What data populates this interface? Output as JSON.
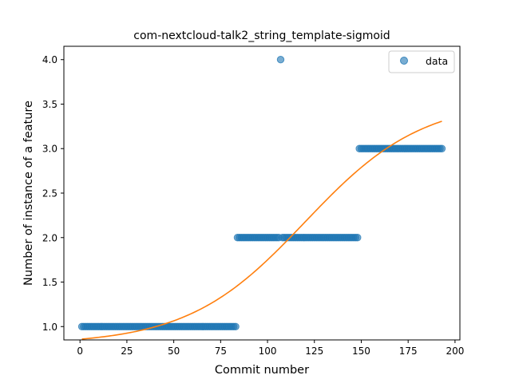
{
  "chart_data": {
    "type": "scatter",
    "title": "com-nextcloud-talk2_string_template-sigmoid",
    "xlabel": "Commit number",
    "ylabel": "Number of instance of a feature",
    "xlim": [
      -8.6,
      202.6
    ],
    "ylim": [
      0.85,
      4.15
    ],
    "xticks": [
      0,
      25,
      50,
      75,
      100,
      125,
      150,
      175,
      200
    ],
    "yticks": [
      1.0,
      1.5,
      2.0,
      2.5,
      3.0,
      3.5,
      4.0
    ],
    "xtick_labels": [
      "0",
      "25",
      "50",
      "75",
      "100",
      "125",
      "150",
      "175",
      "200"
    ],
    "ytick_labels": [
      "1.0",
      "1.5",
      "2.0",
      "2.5",
      "3.0",
      "3.5",
      "4.0"
    ],
    "legend": {
      "position": "top-right",
      "entries": [
        "data"
      ]
    },
    "colors": {
      "data": "#1f77b4",
      "fit": "#ff7f0e"
    },
    "series": [
      {
        "name": "data",
        "kind": "points",
        "segments": [
          {
            "x_start": 1,
            "x_end": 83,
            "y": 1
          },
          {
            "x_start": 84,
            "x_end": 106,
            "y": 2
          },
          {
            "x_start": 108,
            "x_end": 148,
            "y": 2
          },
          {
            "x_start": 149,
            "x_end": 193,
            "y": 3
          }
        ],
        "extra_points": [
          [
            107,
            4
          ]
        ]
      },
      {
        "kind": "line",
        "curve": "sigmoid",
        "params": {
          "lower": 0.8,
          "upper": 3.55,
          "midpoint": 120,
          "rate": 0.032
        },
        "x_range": [
          1,
          193
        ]
      }
    ]
  }
}
